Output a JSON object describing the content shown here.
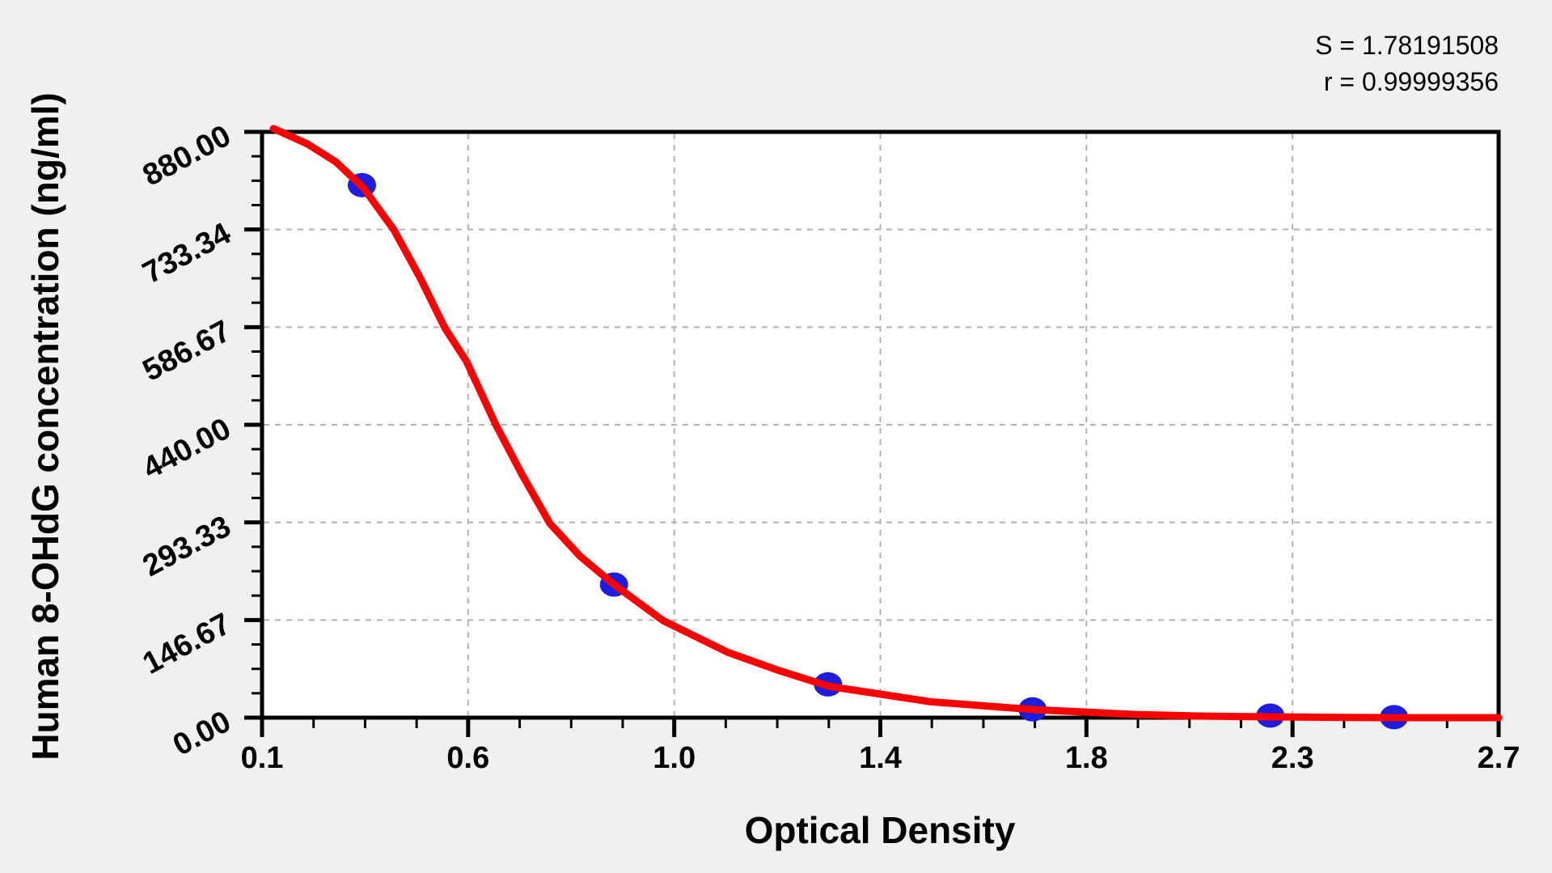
{
  "stats": {
    "s_line": "S = 1.78191508",
    "r_line": "r = 0.99999356"
  },
  "chart_data": {
    "type": "scatter",
    "title": "",
    "xlabel": "Optical Density",
    "ylabel": "Human 8-OHdG concentration (ng/ml)",
    "x_tick_labels": [
      "0.1",
      "0.6",
      "1.0",
      "1.4",
      "1.8",
      "2.3",
      "2.7"
    ],
    "y_tick_labels": [
      "0.00",
      "146.67",
      "293.33",
      "440.00",
      "586.67",
      "733.34",
      "880.00"
    ],
    "x_range": [
      0.1,
      2.7
    ],
    "y_range": [
      0,
      880
    ],
    "minor_ticks_per_interval": 3,
    "grid": "dashed lines at major ticks, none on frame edges",
    "legend": "none",
    "annotations": [
      "S = 1.78191508",
      "r = 0.99999356"
    ],
    "series": [
      {
        "name": "standard-points",
        "type": "scatter",
        "marker": "ellipse",
        "points": [
          {
            "od": 0.31,
            "conc": 800
          },
          {
            "od": 0.84,
            "conc": 200
          },
          {
            "od": 1.29,
            "conc": 50
          },
          {
            "od": 1.72,
            "conc": 12.5
          },
          {
            "od": 2.22,
            "conc": 3.1
          },
          {
            "od": 2.48,
            "conc": 0.8
          }
        ]
      },
      {
        "name": "fitted-curve",
        "type": "line",
        "samples": [
          [
            0.124,
            885
          ],
          [
            0.195,
            862
          ],
          [
            0.255,
            835
          ],
          [
            0.313,
            796
          ],
          [
            0.377,
            733
          ],
          [
            0.433,
            660
          ],
          [
            0.484,
            586
          ],
          [
            0.53,
            535
          ],
          [
            0.591,
            441
          ],
          [
            0.646,
            366
          ],
          [
            0.705,
            292
          ],
          [
            0.768,
            243
          ],
          [
            0.838,
            201
          ],
          [
            0.943,
            146
          ],
          [
            1.08,
            98
          ],
          [
            1.182,
            72
          ],
          [
            1.292,
            47
          ],
          [
            1.403,
            35
          ],
          [
            1.505,
            24
          ],
          [
            1.724,
            12
          ],
          [
            1.828,
            8.5
          ],
          [
            1.93,
            4.9
          ],
          [
            2.066,
            2.4
          ],
          [
            2.222,
            1.2
          ],
          [
            2.355,
            0.5
          ],
          [
            2.481,
            0
          ],
          [
            2.7,
            0
          ]
        ]
      }
    ],
    "colors": {
      "background": "#f0f0f0",
      "plot_background": "#ffffff",
      "frame": "#000000",
      "gridline": "#b0b0b0",
      "curve": "#fe0000",
      "marker": "#1d1ddd",
      "text": "#000000"
    }
  }
}
